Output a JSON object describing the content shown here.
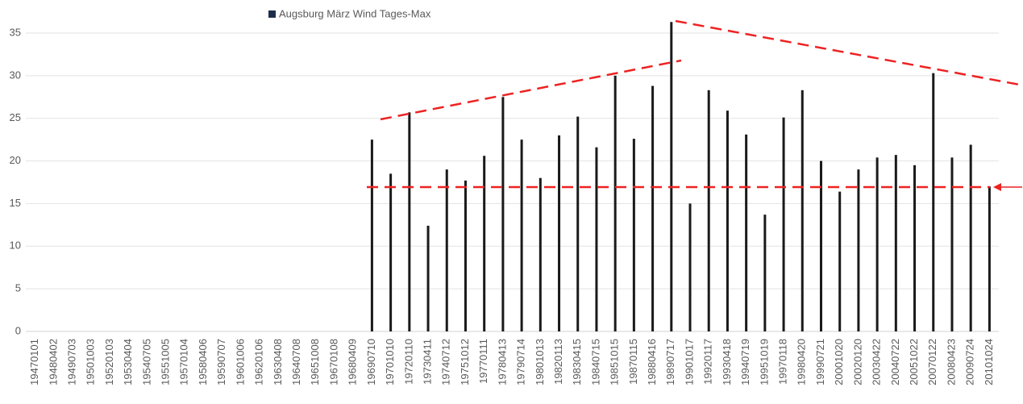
{
  "chart_data": {
    "type": "bar",
    "series": [
      {
        "name": "Augsburg  März Wind Tages-Max",
        "color": "#1a1a1a",
        "values": [
          null,
          null,
          null,
          null,
          null,
          null,
          null,
          null,
          null,
          null,
          null,
          null,
          null,
          null,
          null,
          null,
          null,
          null,
          22.5,
          18.5,
          25.7,
          12.4,
          19,
          17.7,
          20.6,
          27.5,
          22.5,
          18,
          23,
          25.2,
          21.6,
          30,
          22.6,
          28.8,
          36.3,
          15,
          28.3,
          25.9,
          23.1,
          13.7,
          25.1,
          28.3,
          20,
          16.4,
          19,
          20.4,
          20.7,
          19.5,
          30.3,
          20.4,
          21.9,
          17
        ]
      }
    ],
    "legend_color": "#1f2d4d",
    "categories": [
      "19470101",
      "19480402",
      "19490703",
      "19501003",
      "19520103",
      "19530404",
      "19540705",
      "19551005",
      "19570104",
      "19580406",
      "19590707",
      "19601006",
      "19620106",
      "19630408",
      "19640708",
      "19651008",
      "19670108",
      "19680409",
      "19690710",
      "19701010",
      "19720110",
      "19730411",
      "19740712",
      "19751012",
      "19770111",
      "19780413",
      "19790714",
      "19801013",
      "19820113",
      "19830415",
      "19840715",
      "19851015",
      "19870115",
      "19880416",
      "19890717",
      "19901017",
      "19920117",
      "19930418",
      "19940719",
      "19951019",
      "19970118",
      "19980420",
      "19990721",
      "20001020",
      "20020120",
      "20030422",
      "20040722",
      "20051022",
      "20070122",
      "20080423",
      "20090724",
      "20101024"
    ],
    "ylim": [
      0,
      35
    ],
    "yticks": [
      0,
      5,
      10,
      15,
      20,
      25,
      30,
      35
    ],
    "grid": true
  }
}
